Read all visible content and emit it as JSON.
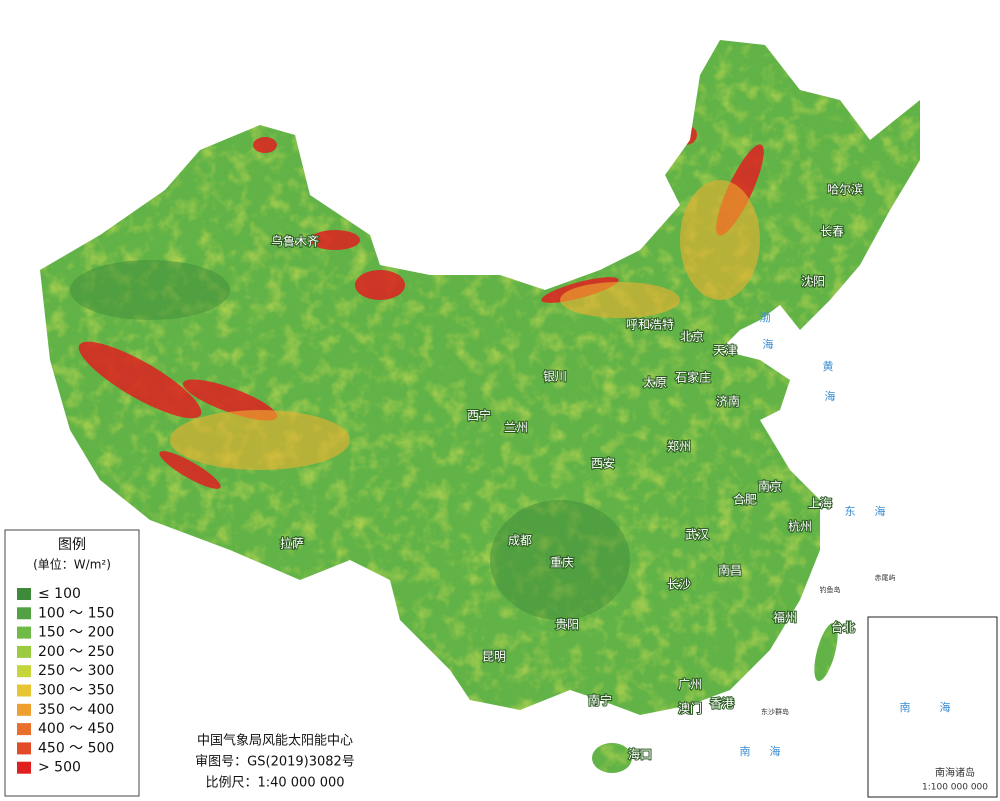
{
  "map": {
    "cities": [
      "乌鲁木齐",
      "哈尔滨",
      "长春",
      "沈阳",
      "呼和浩特",
      "北京",
      "天津",
      "银川",
      "太原",
      "石家庄",
      "济南",
      "西宁",
      "兰州",
      "西安",
      "郑州",
      "南京",
      "合肥",
      "上海",
      "杭州",
      "成都",
      "重庆",
      "武汉",
      "南昌",
      "长沙",
      "福州",
      "台北",
      "贵阳",
      "昆明",
      "拉萨",
      "南宁",
      "广州",
      "澳门",
      "香港",
      "海口"
    ],
    "sea_labels": [
      "渤",
      "海",
      "黄",
      "海",
      "东",
      "海",
      "南",
      "海"
    ],
    "islands": [
      "钓鱼岛",
      "赤尾屿",
      "东沙群岛"
    ],
    "inset": {
      "labels": [
        "南",
        "海"
      ],
      "title": "南海诸岛",
      "scale": "1:100 000 000"
    }
  },
  "legend": {
    "title": "图例",
    "unit": "(单位：W/m²)",
    "items": [
      {
        "label": "≤ 100",
        "color": "#3d8b3a"
      },
      {
        "label": "100 ～ 150",
        "color": "#52a244"
      },
      {
        "label": "150 ～ 200",
        "color": "#6fb946"
      },
      {
        "label": "200 ～ 250",
        "color": "#9bcb3f"
      },
      {
        "label": "250 ～ 300",
        "color": "#c6d53b"
      },
      {
        "label": "300 ～ 350",
        "color": "#e6c733"
      },
      {
        "label": "350 ～ 400",
        "color": "#ef9f30"
      },
      {
        "label": "400 ～ 450",
        "color": "#e8702a"
      },
      {
        "label": "450 ～ 500",
        "color": "#e14b25"
      },
      {
        "label": "> 500",
        "color": "#e02020"
      }
    ]
  },
  "credits": [
    "中国气象局风能太阳能中心",
    "审图号：GS(2019)3082号",
    "比例尺：1:40 000 000"
  ]
}
